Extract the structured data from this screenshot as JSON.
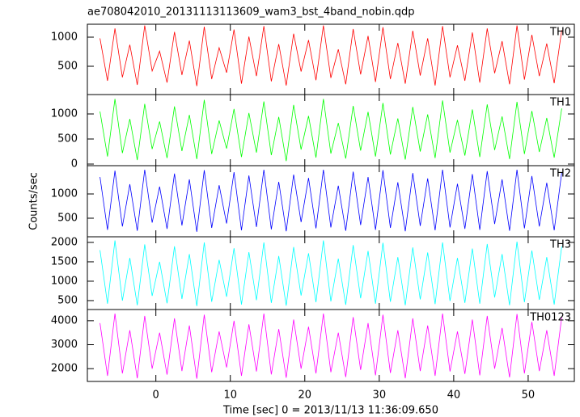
{
  "chart_data": [
    {
      "type": "line",
      "title": "ae708042010_20131113113609_wam3_bst_4band_nobin.qdp",
      "x": [
        -7.5,
        -6.5,
        -5.5,
        -4.5,
        -3.5,
        -2.5,
        -1.5,
        -0.5,
        0.5,
        1.5,
        2.5,
        3.5,
        4.5,
        5.5,
        6.5,
        7.5,
        8.5,
        9.5,
        10.5,
        11.5,
        12.5,
        13.5,
        14.5,
        15.5,
        16.5,
        17.5,
        18.5,
        19.5,
        20.5,
        21.5,
        22.5,
        23.5,
        24.5,
        25.5,
        26.5,
        27.5,
        28.5,
        29.5,
        30.5,
        31.5,
        32.5,
        33.5,
        34.5,
        35.5,
        36.5,
        37.5,
        38.5,
        39.5,
        40.5,
        41.5,
        42.5,
        43.5,
        44.5,
        45.5,
        46.5,
        47.5,
        48.5,
        49.5,
        50.5,
        51.5,
        52.5,
        53.5,
        54.5
      ],
      "series": [
        {
          "name": "TH0",
          "color": "#ff0000",
          "values": [
            980,
            250,
            1150,
            310,
            870,
            180,
            1200,
            420,
            760,
            220,
            1090,
            350,
            940,
            160,
            1180,
            280,
            820,
            390,
            1130,
            200,
            1010,
            330,
            1190,
            240,
            880,
            170,
            1060,
            410,
            950,
            260,
            1200,
            300,
            790,
            190,
            1140,
            360,
            1020,
            230,
            1170,
            280,
            900,
            200,
            1110,
            340,
            980,
            170,
            1190,
            310,
            860,
            250,
            1080,
            220,
            1150,
            380,
            930,
            190,
            1200,
            270,
            1040,
            330,
            890,
            210,
            1120
          ]
        }
      ],
      "xlim": [
        -9.2,
        56.2
      ],
      "xticks": [
        0,
        10,
        20,
        30,
        40,
        50
      ],
      "ylim": [
        14,
        1222
      ],
      "yticks": [
        500,
        1000
      ]
    },
    {
      "type": "line",
      "x": [
        -7.5,
        -6.5,
        -5.5,
        -4.5,
        -3.5,
        -2.5,
        -1.5,
        -0.5,
        0.5,
        1.5,
        2.5,
        3.5,
        4.5,
        5.5,
        6.5,
        7.5,
        8.5,
        9.5,
        10.5,
        11.5,
        12.5,
        13.5,
        14.5,
        15.5,
        16.5,
        17.5,
        18.5,
        19.5,
        20.5,
        21.5,
        22.5,
        23.5,
        24.5,
        25.5,
        26.5,
        27.5,
        28.5,
        29.5,
        30.5,
        31.5,
        32.5,
        33.5,
        34.5,
        35.5,
        36.5,
        37.5,
        38.5,
        39.5,
        40.5,
        41.5,
        42.5,
        43.5,
        44.5,
        45.5,
        46.5,
        47.5,
        48.5,
        49.5,
        50.5,
        51.5,
        52.5,
        53.5,
        54.5
      ],
      "series": [
        {
          "name": "TH1",
          "color": "#00ff00",
          "values": [
            1050,
            150,
            1300,
            220,
            900,
            80,
            1200,
            300,
            850,
            120,
            1150,
            260,
            980,
            100,
            1280,
            200,
            870,
            310,
            1100,
            140,
            1020,
            230,
            1250,
            180,
            940,
            60,
            1180,
            290,
            960,
            130,
            1300,
            210,
            820,
            110,
            1160,
            270,
            1040,
            150,
            1220,
            190,
            910,
            90,
            1140,
            250,
            990,
            120,
            1270,
            230,
            880,
            170,
            1090,
            140,
            1190,
            280,
            950,
            100,
            1240,
            200,
            1060,
            240,
            920,
            130,
            1110
          ]
        }
      ],
      "xlim": [
        -9.2,
        56.2
      ],
      "xticks": [
        0,
        10,
        20,
        30,
        40,
        50
      ],
      "ylim": [
        -32,
        1387
      ],
      "yticks": [
        0,
        500,
        1000
      ]
    },
    {
      "type": "line",
      "ylabel": "Counts/sec",
      "x": [
        -7.5,
        -6.5,
        -5.5,
        -4.5,
        -3.5,
        -2.5,
        -1.5,
        -0.5,
        0.5,
        1.5,
        2.5,
        3.5,
        4.5,
        5.5,
        6.5,
        7.5,
        8.5,
        9.5,
        10.5,
        11.5,
        12.5,
        13.5,
        14.5,
        15.5,
        16.5,
        17.5,
        18.5,
        19.5,
        20.5,
        21.5,
        22.5,
        23.5,
        24.5,
        25.5,
        26.5,
        27.5,
        28.5,
        29.5,
        30.5,
        31.5,
        32.5,
        33.5,
        34.5,
        35.5,
        36.5,
        37.5,
        38.5,
        39.5,
        40.5,
        41.5,
        42.5,
        43.5,
        44.5,
        45.5,
        46.5,
        47.5,
        48.5,
        49.5,
        50.5,
        51.5,
        52.5,
        53.5,
        54.5
      ],
      "series": [
        {
          "name": "TH2",
          "color": "#0000ff",
          "values": [
            1350,
            260,
            1480,
            330,
            1200,
            240,
            1500,
            410,
            1150,
            280,
            1420,
            350,
            1300,
            220,
            1490,
            300,
            1180,
            390,
            1450,
            250,
            1380,
            320,
            1500,
            270,
            1250,
            230,
            1400,
            420,
            1330,
            290,
            1500,
            310,
            1170,
            240,
            1460,
            360,
            1350,
            260,
            1490,
            300,
            1240,
            230,
            1430,
            340,
            1320,
            250,
            1500,
            310,
            1210,
            280,
            1410,
            260,
            1470,
            380,
            1300,
            240,
            1500,
            290,
            1370,
            330,
            1230,
            250,
            1440
          ]
        }
      ],
      "xlim": [
        -9.2,
        56.2
      ],
      "xticks": [
        0,
        10,
        20,
        30,
        40,
        50
      ],
      "ylim": [
        117,
        1583
      ],
      "yticks": [
        500,
        1000
      ]
    },
    {
      "type": "line",
      "x": [
        -7.5,
        -6.5,
        -5.5,
        -4.5,
        -3.5,
        -2.5,
        -1.5,
        -0.5,
        0.5,
        1.5,
        2.5,
        3.5,
        4.5,
        5.5,
        6.5,
        7.5,
        8.5,
        9.5,
        10.5,
        11.5,
        12.5,
        13.5,
        14.5,
        15.5,
        16.5,
        17.5,
        18.5,
        19.5,
        20.5,
        21.5,
        22.5,
        23.5,
        24.5,
        25.5,
        26.5,
        27.5,
        28.5,
        29.5,
        30.5,
        31.5,
        32.5,
        33.5,
        34.5,
        35.5,
        36.5,
        37.5,
        38.5,
        39.5,
        40.5,
        41.5,
        42.5,
        43.5,
        44.5,
        45.5,
        46.5,
        47.5,
        48.5,
        49.5,
        50.5,
        51.5,
        52.5,
        53.5,
        54.5
      ],
      "series": [
        {
          "name": "TH3",
          "color": "#00ffff",
          "values": [
            1800,
            420,
            2050,
            500,
            1600,
            380,
            1950,
            620,
            1500,
            430,
            1900,
            540,
            1700,
            360,
            2000,
            470,
            1550,
            600,
            1850,
            400,
            1750,
            510,
            2000,
            440,
            1650,
            370,
            1880,
            630,
            1720,
            460,
            2050,
            480,
            1580,
            390,
            1930,
            560,
            1780,
            420,
            1990,
            470,
            1620,
            380,
            1870,
            530,
            1740,
            410,
            2000,
            490,
            1600,
            440,
            1840,
            420,
            1960,
            580,
            1700,
            380,
            2020,
            460,
            1790,
            520,
            1620,
            400,
            1900
          ]
        }
      ],
      "xlim": [
        -9.2,
        56.2
      ],
      "xticks": [
        0,
        10,
        20,
        30,
        40,
        50
      ],
      "ylim": [
        270,
        2145
      ],
      "yticks": [
        500,
        1000,
        1500,
        2000
      ]
    },
    {
      "type": "line",
      "xlabel": "Time [sec] 0 = 2013/11/13 11:36:09.650",
      "x": [
        -7.5,
        -6.5,
        -5.5,
        -4.5,
        -3.5,
        -2.5,
        -1.5,
        -0.5,
        0.5,
        1.5,
        2.5,
        3.5,
        4.5,
        5.5,
        6.5,
        7.5,
        8.5,
        9.5,
        10.5,
        11.5,
        12.5,
        13.5,
        14.5,
        15.5,
        16.5,
        17.5,
        18.5,
        19.5,
        20.5,
        21.5,
        22.5,
        23.5,
        24.5,
        25.5,
        26.5,
        27.5,
        28.5,
        29.5,
        30.5,
        31.5,
        32.5,
        33.5,
        34.5,
        35.5,
        36.5,
        37.5,
        38.5,
        39.5,
        40.5,
        41.5,
        42.5,
        43.5,
        44.5,
        45.5,
        46.5,
        47.5,
        48.5,
        49.5,
        50.5,
        51.5,
        52.5,
        53.5,
        54.5
      ],
      "series": [
        {
          "name": "TH0123",
          "color": "#ff00ff",
          "values": [
            3900,
            1700,
            4300,
            1800,
            3600,
            1600,
            4200,
            2000,
            3500,
            1750,
            4100,
            1900,
            3800,
            1580,
            4250,
            1850,
            3550,
            2050,
            4000,
            1700,
            3850,
            1880,
            4300,
            1760,
            3650,
            1620,
            4050,
            2000,
            3750,
            1800,
            4300,
            1850,
            3500,
            1650,
            4150,
            1950,
            3900,
            1720,
            4250,
            1820,
            3600,
            1600,
            4100,
            1900,
            3800,
            1700,
            4300,
            1880,
            3550,
            1780,
            4050,
            1720,
            4200,
            2000,
            3700,
            1640,
            4280,
            1800,
            3950,
            1900,
            3600,
            1700,
            4150
          ]
        }
      ],
      "xlim": [
        -9.2,
        56.2
      ],
      "xticks": [
        0,
        10,
        20,
        30,
        40,
        50
      ],
      "ylim": [
        1467,
        4467
      ],
      "yticks": [
        2000,
        3000,
        4000
      ]
    }
  ]
}
